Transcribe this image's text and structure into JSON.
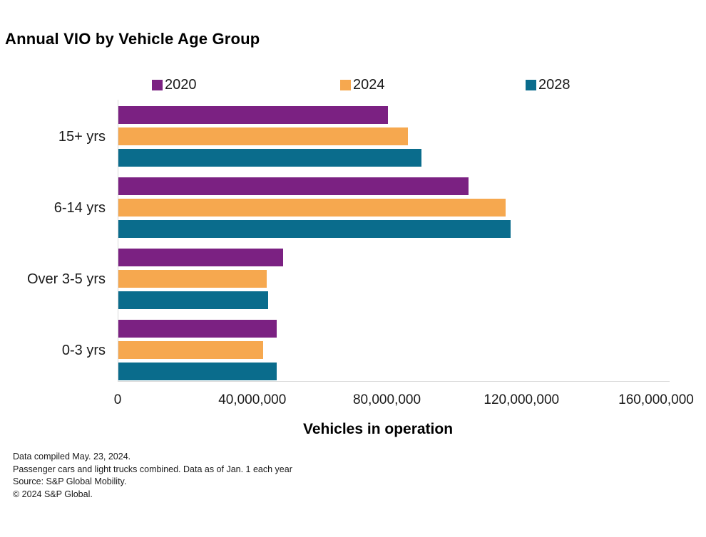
{
  "title": "Annual VIO by Vehicle Age Group",
  "chart_data": {
    "type": "bar",
    "orientation": "horizontal",
    "title": "Annual VIO by Vehicle Age Group",
    "categories": [
      "15+ yrs",
      "6-14 yrs",
      "Over 3-5 yrs",
      "0-3 yrs"
    ],
    "series": [
      {
        "name": "2020",
        "color": "#7B2182",
        "values": [
          80000000,
          104000000,
          49000000,
          47000000
        ]
      },
      {
        "name": "2024",
        "color": "#F6A84F",
        "values": [
          86000000,
          115000000,
          44000000,
          43000000
        ]
      },
      {
        "name": "2028",
        "color": "#0A6C8C",
        "values": [
          90000000,
          116500000,
          44500000,
          47000000
        ]
      }
    ],
    "xlabel": "Vehicles in operation",
    "ylabel": "",
    "xlim": [
      0,
      160000000
    ],
    "x_ticks": [
      "0",
      "40,000,000",
      "80,000,000",
      "120,000,000",
      "160,000,000"
    ],
    "grid": false,
    "legend_position": "top",
    "bar_order_within_group": [
      "2020",
      "2024",
      "2028"
    ]
  },
  "legend": {
    "items": [
      {
        "label": "2020",
        "color": "#7B2182"
      },
      {
        "label": "2024",
        "color": "#F6A84F"
      },
      {
        "label": "2028",
        "color": "#0A6C8C"
      }
    ]
  },
  "footer": {
    "lines": [
      "Data compiled May. 23, 2024.",
      "Passenger cars and light trucks combined. Data as of Jan. 1 each year",
      "Source: S&P Global Mobility.",
      "© 2024 S&P Global."
    ]
  },
  "colors": {
    "axis_line": "#d9d9d9",
    "text": "#1a1a1a",
    "title": "#000000"
  }
}
